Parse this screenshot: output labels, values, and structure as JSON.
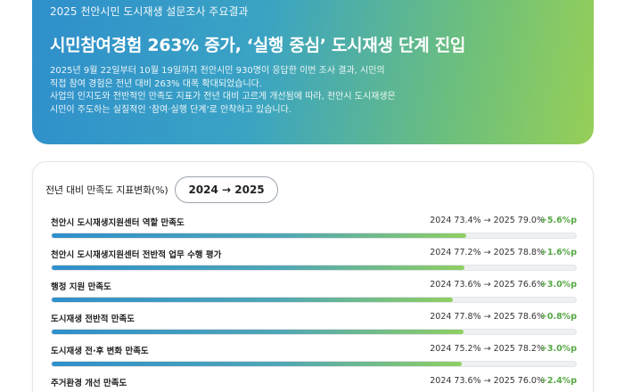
{
  "hero": {
    "eyebrow": "2025 천안시민 도시재생 설문조사 주요결과",
    "headline": "시민참여경험 263% 증가, ‘실행 중심’ 도시재생 단계 진입",
    "body_lines": [
      "2025년 9월 22일부터 10월 19일까지 천안시민 930명이 응답한 이번 조사 결과, 시민의",
      "직접 참여 경험은 전년 대비 263% 대폭 확대되었습니다.",
      "사업의 인지도와 전반적인 만족도 지표가 전년 대비 고르게 개선됨에 따라, 천안시 도시재생은",
      "시민이 주도하는 실질적인 ‘참여·실행 단계’로 안착하고 있습니다."
    ]
  },
  "card": {
    "title": "전년 대비 만족도 지표변화(%)",
    "year_pill": "2024 → 2025",
    "metrics": [
      {
        "label": "천안시 도시재생지원센터 역할 만족도",
        "values": "2024 73.4% → 2025 79.0%",
        "delta": "+5.6%p",
        "value_2025": 79.0
      },
      {
        "label": "천안시 도시재생지원센터 전반적 업무 수행 평가",
        "values": "2024 77.2% → 2025 78.8%",
        "delta": "+1.6%p",
        "value_2025": 78.8
      },
      {
        "label": "행정 지원 만족도",
        "values": "2024 73.6% → 2025 76.6%",
        "delta": "+3.0%p",
        "value_2025": 76.6
      },
      {
        "label": "도시재생 전반적 만족도",
        "values": "2024 77.8% → 2025 78.6%",
        "delta": "+0.8%p",
        "value_2025": 78.6
      },
      {
        "label": "도시재생 전·후 변화 만족도",
        "values": "2024 75.2% → 2025 78.2%",
        "delta": "+3.0%p",
        "value_2025": 78.2
      },
      {
        "label": "주거환경 개선 만족도",
        "values": "2024 73.6% → 2025 76.0%",
        "delta": "+2.4%p",
        "value_2025": 76.0
      }
    ]
  },
  "colors": {
    "accent_blue": "#2f8fcb",
    "accent_green": "#97cf57",
    "delta_green": "#55a845"
  }
}
